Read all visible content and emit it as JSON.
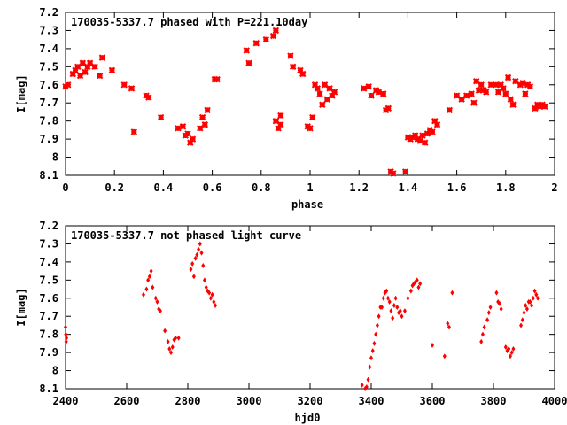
{
  "chart_data": [
    {
      "type": "scatter",
      "title": "170035-5337.7 phased with P=221.10day",
      "xlabel": "phase",
      "ylabel": "I[mag]",
      "xlim": [
        0,
        2
      ],
      "ylim": [
        8.1,
        7.2
      ],
      "y_inverted": true,
      "grid": false,
      "legend": "none",
      "xticks": [
        "0",
        "0.2",
        "0.4",
        "0.6",
        "0.8",
        "1",
        "1.2",
        "1.4",
        "1.6",
        "1.8",
        "2"
      ],
      "yticks": [
        "7.2",
        "7.3",
        "7.4",
        "7.5",
        "7.6",
        "7.7",
        "7.8",
        "7.9",
        "8",
        "8.1"
      ],
      "marker": "cross",
      "marker_color": "#ff0000",
      "series": [
        {
          "x": [
            0.0,
            0.01,
            0.03,
            0.04,
            0.05,
            0.06,
            0.07,
            0.08,
            0.09,
            0.1,
            0.12,
            0.14,
            0.15,
            0.19,
            0.24,
            0.27,
            0.28,
            0.33,
            0.34,
            0.39,
            0.46,
            0.48,
            0.49,
            0.5,
            0.51,
            0.52,
            0.55,
            0.56,
            0.57,
            0.58,
            0.61,
            0.62,
            0.74,
            0.75,
            0.78,
            0.82,
            0.85,
            0.86,
            0.86,
            0.87,
            0.88,
            0.88,
            0.92,
            0.93,
            0.96,
            0.97,
            0.99,
            1.0,
            1.01,
            1.02,
            1.03,
            1.04,
            1.05,
            1.06,
            1.07,
            1.08,
            1.09,
            1.1,
            1.22,
            1.24,
            1.25,
            1.27,
            1.28,
            1.3,
            1.31,
            1.32,
            1.33,
            1.34,
            1.39,
            1.4,
            1.41,
            1.42,
            1.43,
            1.44,
            1.45,
            1.46,
            1.47,
            1.48,
            1.49,
            1.5,
            1.51,
            1.52,
            1.57,
            1.6,
            1.62,
            1.64,
            1.66,
            1.67,
            1.68,
            1.69,
            1.7,
            1.71,
            1.72,
            1.74,
            1.76,
            1.77,
            1.78,
            1.79,
            1.8,
            1.81,
            1.82,
            1.83,
            1.84,
            1.86,
            1.87,
            1.88,
            1.89,
            1.9,
            1.92,
            1.93,
            1.94,
            1.95,
            1.96
          ],
          "y": [
            7.61,
            7.6,
            7.54,
            7.52,
            7.5,
            7.55,
            7.48,
            7.53,
            7.5,
            7.48,
            7.5,
            7.55,
            7.45,
            7.52,
            7.6,
            7.62,
            7.86,
            7.66,
            7.67,
            7.78,
            7.84,
            7.83,
            7.88,
            7.87,
            7.92,
            7.9,
            7.84,
            7.78,
            7.82,
            7.74,
            7.57,
            7.57,
            7.41,
            7.48,
            7.37,
            7.35,
            7.33,
            7.3,
            7.8,
            7.84,
            7.82,
            7.77,
            7.44,
            7.5,
            7.52,
            7.54,
            7.83,
            7.84,
            7.78,
            7.6,
            7.62,
            7.65,
            7.71,
            7.6,
            7.68,
            7.62,
            7.66,
            7.64,
            7.62,
            7.61,
            7.66,
            7.63,
            7.64,
            7.65,
            7.74,
            7.73,
            8.08,
            8.09,
            8.08,
            7.89,
            7.9,
            7.89,
            7.88,
            7.9,
            7.91,
            7.88,
            7.92,
            7.87,
            7.85,
            7.86,
            7.8,
            7.82,
            7.74,
            7.66,
            7.68,
            7.66,
            7.65,
            7.7,
            7.58,
            7.63,
            7.6,
            7.63,
            7.64,
            7.6,
            7.6,
            7.64,
            7.6,
            7.62,
            7.65,
            7.56,
            7.68,
            7.71,
            7.58,
            7.6,
            7.59,
            7.65,
            7.6,
            7.61,
            7.73,
            7.71,
            7.72,
            7.71,
            7.72
          ]
        }
      ]
    },
    {
      "type": "scatter",
      "title": "170035-5337.7 not phased light curve",
      "xlabel": "hjd0",
      "ylabel": "I[mag]",
      "xlim": [
        2400,
        4000
      ],
      "ylim": [
        8.1,
        7.2
      ],
      "y_inverted": true,
      "grid": false,
      "legend": "none",
      "xticks": [
        "2400",
        "2600",
        "2800",
        "3000",
        "3200",
        "3400",
        "3600",
        "3800",
        "4000"
      ],
      "yticks": [
        "7.2",
        "7.3",
        "7.4",
        "7.5",
        "7.6",
        "7.7",
        "7.8",
        "7.9",
        "8",
        "8.1"
      ],
      "marker": "diamond",
      "marker_color": "#ff0000",
      "series": [
        {
          "x": [
            2400,
            2401,
            2402,
            2403,
            2655,
            2665,
            2670,
            2675,
            2680,
            2685,
            2695,
            2700,
            2705,
            2710,
            2725,
            2735,
            2740,
            2745,
            2750,
            2755,
            2760,
            2770,
            2810,
            2815,
            2820,
            2825,
            2830,
            2835,
            2840,
            2845,
            2850,
            2855,
            2860,
            2865,
            2870,
            2875,
            2880,
            2885,
            2890,
            3370,
            3380,
            3385,
            3390,
            3395,
            3400,
            3405,
            3410,
            3415,
            3420,
            3425,
            3430,
            3435,
            3440,
            3445,
            3450,
            3455,
            3460,
            3465,
            3470,
            3475,
            3480,
            3485,
            3490,
            3495,
            3500,
            3510,
            3520,
            3530,
            3535,
            3540,
            3545,
            3550,
            3555,
            3560,
            3600,
            3640,
            3650,
            3655,
            3665,
            3760,
            3765,
            3770,
            3780,
            3785,
            3790,
            3810,
            3815,
            3820,
            3825,
            3840,
            3845,
            3850,
            3855,
            3860,
            3865,
            3890,
            3895,
            3900,
            3905,
            3910,
            3915,
            3920,
            3925,
            3930,
            3935,
            3940,
            3945
          ],
          "y": [
            7.76,
            7.8,
            7.84,
            7.82,
            7.58,
            7.55,
            7.5,
            7.48,
            7.45,
            7.54,
            7.6,
            7.62,
            7.66,
            7.67,
            7.78,
            7.84,
            7.88,
            7.9,
            7.87,
            7.83,
            7.82,
            7.82,
            7.44,
            7.41,
            7.48,
            7.38,
            7.36,
            7.33,
            7.3,
            7.35,
            7.42,
            7.5,
            7.54,
            7.56,
            7.57,
            7.6,
            7.58,
            7.62,
            7.64,
            8.08,
            8.1,
            8.09,
            8.05,
            7.98,
            7.93,
            7.89,
            7.85,
            7.8,
            7.75,
            7.7,
            7.65,
            7.65,
            7.6,
            7.57,
            7.56,
            7.6,
            7.62,
            7.67,
            7.71,
            7.64,
            7.6,
            7.65,
            7.68,
            7.67,
            7.7,
            7.67,
            7.6,
            7.56,
            7.53,
            7.52,
            7.51,
            7.5,
            7.54,
            7.52,
            7.86,
            7.92,
            7.74,
            7.76,
            7.57,
            7.84,
            7.8,
            7.76,
            7.72,
            7.68,
            7.65,
            7.57,
            7.62,
            7.63,
            7.66,
            7.87,
            7.89,
            7.88,
            7.92,
            7.9,
            7.88,
            7.75,
            7.72,
            7.68,
            7.64,
            7.66,
            7.62,
            7.62,
            7.64,
            7.6,
            7.56,
            7.58,
            7.6
          ]
        }
      ]
    }
  ]
}
